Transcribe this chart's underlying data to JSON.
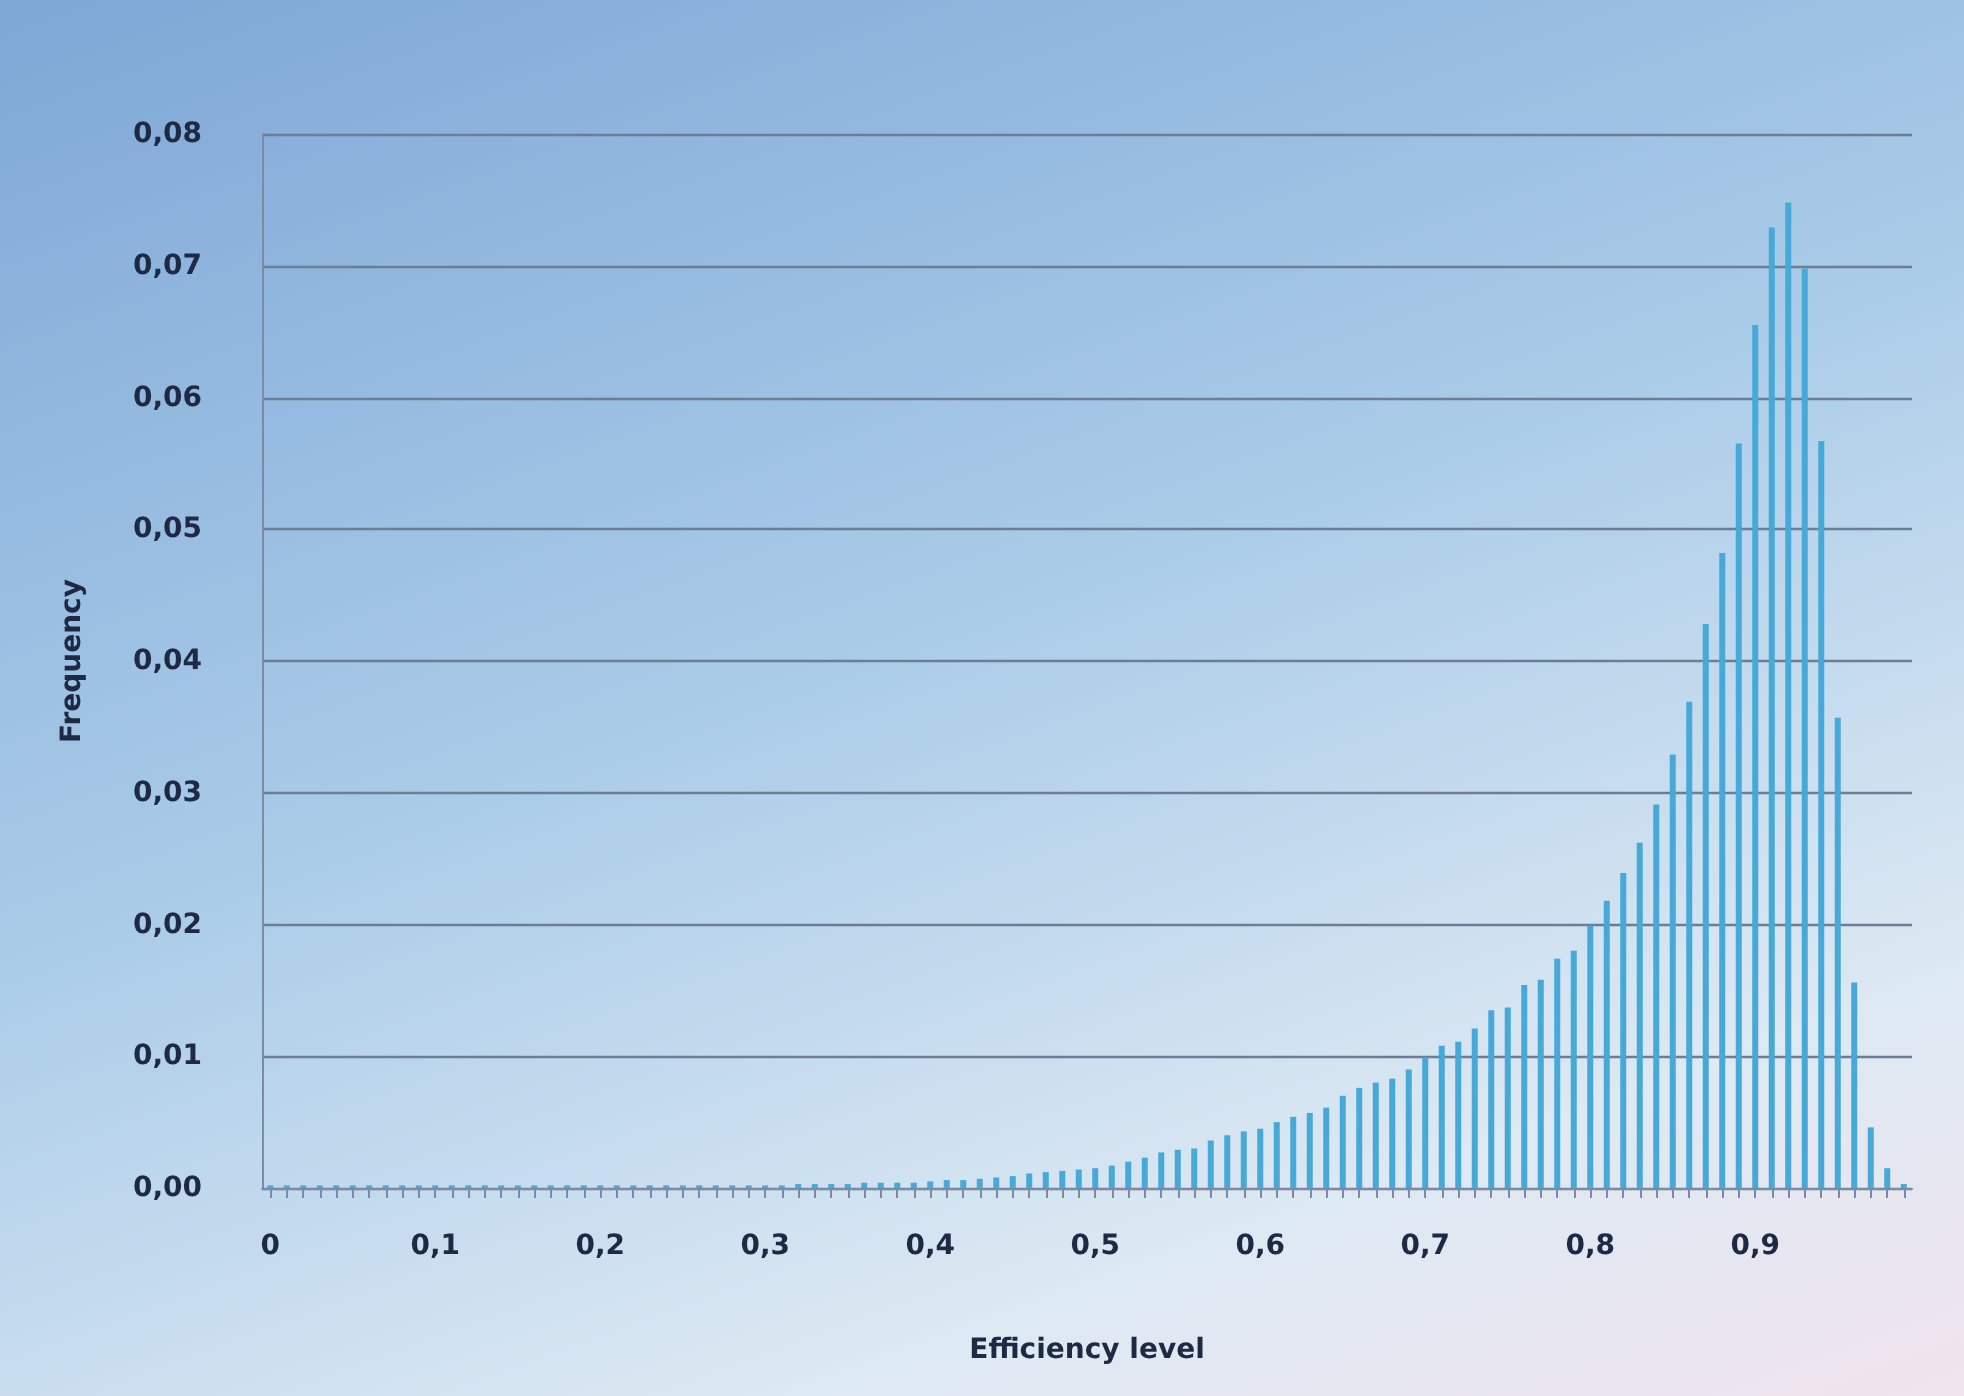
{
  "chart_data": {
    "type": "bar",
    "xlabel": "Efficiency level",
    "ylabel": "Frequency",
    "categories": [
      "0",
      null,
      null,
      null,
      null,
      null,
      null,
      null,
      null,
      null,
      "0,1",
      null,
      null,
      null,
      null,
      null,
      null,
      null,
      null,
      null,
      "0,2",
      null,
      null,
      null,
      null,
      null,
      null,
      null,
      null,
      null,
      "0,3",
      null,
      null,
      null,
      null,
      null,
      null,
      null,
      null,
      null,
      "0,4",
      null,
      null,
      null,
      null,
      null,
      null,
      null,
      null,
      null,
      "0,5",
      null,
      null,
      null,
      null,
      null,
      null,
      null,
      null,
      null,
      "0,6",
      null,
      null,
      null,
      null,
      null,
      null,
      null,
      null,
      null,
      "0,7",
      null,
      null,
      null,
      null,
      null,
      null,
      null,
      null,
      null,
      "0,8",
      null,
      null,
      null,
      null,
      null,
      null,
      null,
      null,
      null,
      "0,9",
      null,
      null,
      null,
      null,
      null,
      null,
      null,
      null,
      null
    ],
    "values": [
      0.0002,
      0.0002,
      0.0002,
      0.0002,
      0.0002,
      0.0002,
      0.0002,
      0.0002,
      0.0002,
      0.0002,
      0.0002,
      0.0002,
      0.0002,
      0.0002,
      0.0002,
      0.0002,
      0.0002,
      0.0002,
      0.0002,
      0.0002,
      0.0002,
      0.0002,
      0.0002,
      0.0002,
      0.0002,
      0.0002,
      0.0002,
      0.0002,
      0.0002,
      0.0002,
      0.0002,
      0.0002,
      0.0003,
      0.0003,
      0.0003,
      0.0003,
      0.0004,
      0.0004,
      0.0004,
      0.0004,
      0.0005,
      0.0006,
      0.0006,
      0.0007,
      0.0008,
      0.0009,
      0.0011,
      0.0012,
      0.0013,
      0.0014,
      0.0015,
      0.0017,
      0.002,
      0.0023,
      0.0027,
      0.0029,
      0.003,
      0.0036,
      0.004,
      0.0043,
      0.0045,
      0.005,
      0.0054,
      0.0057,
      0.0061,
      0.007,
      0.0076,
      0.008,
      0.0083,
      0.009,
      0.0099,
      0.0108,
      0.0111,
      0.0121,
      0.0135,
      0.0137,
      0.0154,
      0.0158,
      0.0174,
      0.018,
      0.0199,
      0.0218,
      0.0239,
      0.0262,
      0.0291,
      0.0329,
      0.0369,
      0.0428,
      0.0482,
      0.0565,
      0.0655,
      0.0729,
      0.0748,
      0.0698,
      0.0567,
      0.0357,
      0.0156,
      0.0046,
      0.0015,
      0.0003
    ],
    "color": "#46a9d8",
    "ylim": [
      0,
      0.08
    ],
    "yticks": [
      {
        "value": 0,
        "label": "0,00"
      },
      {
        "value": 0.01,
        "label": "0,01"
      },
      {
        "value": 0.02,
        "label": "0,02"
      },
      {
        "value": 0.03,
        "label": "0,03"
      },
      {
        "value": 0.04,
        "label": "0,04"
      },
      {
        "value": 0.05,
        "label": "0,05"
      },
      {
        "value": 0.06,
        "label": "0,06"
      },
      {
        "value": 0.07,
        "label": "0,07"
      },
      {
        "value": 0.08,
        "label": "0,08"
      }
    ],
    "grid": "y"
  }
}
